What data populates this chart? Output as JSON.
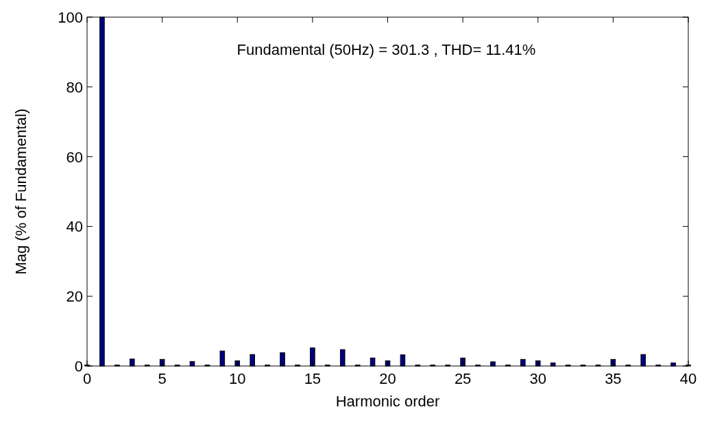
{
  "chart_data": {
    "type": "bar",
    "title": "Fundamental (50Hz) = 301.3 , THD= 11.41%",
    "xlabel": "Harmonic order",
    "ylabel": "Mag (% of Fundamental)",
    "x": [
      0,
      1,
      2,
      3,
      4,
      5,
      6,
      7,
      8,
      9,
      10,
      11,
      12,
      13,
      14,
      15,
      16,
      17,
      18,
      19,
      20,
      21,
      22,
      23,
      24,
      25,
      26,
      27,
      28,
      29,
      30,
      31,
      32,
      33,
      34,
      35,
      36,
      37,
      38,
      39,
      40
    ],
    "values": [
      0.3,
      100,
      0.3,
      2.0,
      0.3,
      1.9,
      0.3,
      1.3,
      0.3,
      4.3,
      1.5,
      3.3,
      0.3,
      3.8,
      0.3,
      5.2,
      0.3,
      4.7,
      0.3,
      2.3,
      1.5,
      3.2,
      0.3,
      0.3,
      0.3,
      2.3,
      0.3,
      1.2,
      0.3,
      1.9,
      1.5,
      0.9,
      0.3,
      0.3,
      0.3,
      1.9,
      0.3,
      3.3,
      0.3,
      0.9,
      0.3
    ],
    "color": "#000080",
    "xlim": [
      0,
      40
    ],
    "xticks": [
      0,
      5,
      10,
      15,
      20,
      25,
      30,
      35,
      40
    ],
    "ylim": [
      0,
      100
    ],
    "yticks": [
      0,
      20,
      40,
      60,
      80,
      100
    ],
    "grid": false
  }
}
